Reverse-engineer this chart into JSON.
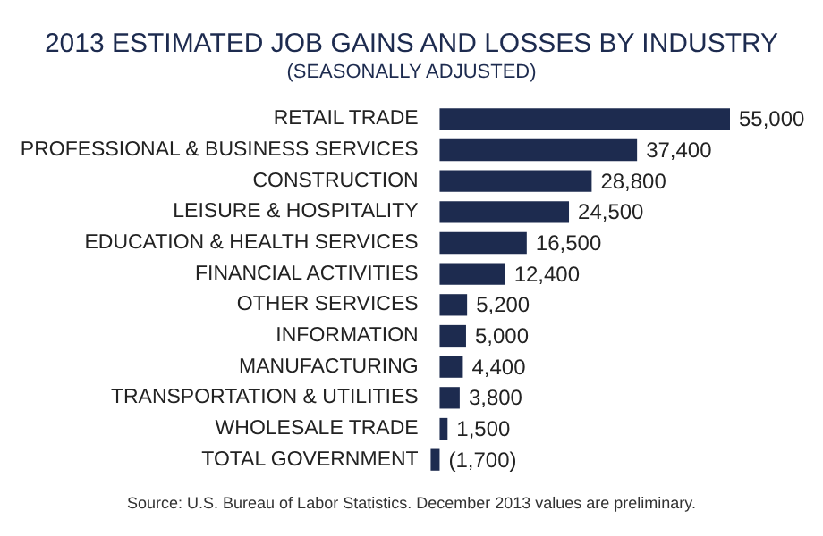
{
  "chart_data": {
    "type": "bar",
    "orientation": "horizontal",
    "title": "2013 ESTIMATED JOB GAINS AND LOSSES BY INDUSTRY",
    "subtitle": "(SEASONALLY ADJUSTED)",
    "categories": [
      "RETAIL TRADE",
      "PROFESSIONAL & BUSINESS SERVICES",
      "CONSTRUCTION",
      "LEISURE & HOSPITALITY",
      "EDUCATION & HEALTH SERVICES",
      "FINANCIAL ACTIVITIES",
      "OTHER SERVICES",
      "INFORMATION",
      "MANUFACTURING",
      "TRANSPORTATION & UTILITIES",
      "WHOLESALE TRADE",
      "TOTAL GOVERNMENT"
    ],
    "values": [
      55000,
      37400,
      28800,
      24500,
      16500,
      12400,
      5200,
      5000,
      4400,
      3800,
      1500,
      -1700
    ],
    "value_labels": [
      "55,000",
      "37,400",
      "28,800",
      "24,500",
      "16,500",
      "12,400",
      "5,200",
      "5,000",
      "4,400",
      "3,800",
      "1,500",
      "(1,700)"
    ],
    "color": "#1d2b4f",
    "xlim": [
      -2000,
      55000
    ],
    "annotations": [
      "Source: U.S. Bureau of Labor Statistics. December 2013 values are preliminary."
    ]
  }
}
